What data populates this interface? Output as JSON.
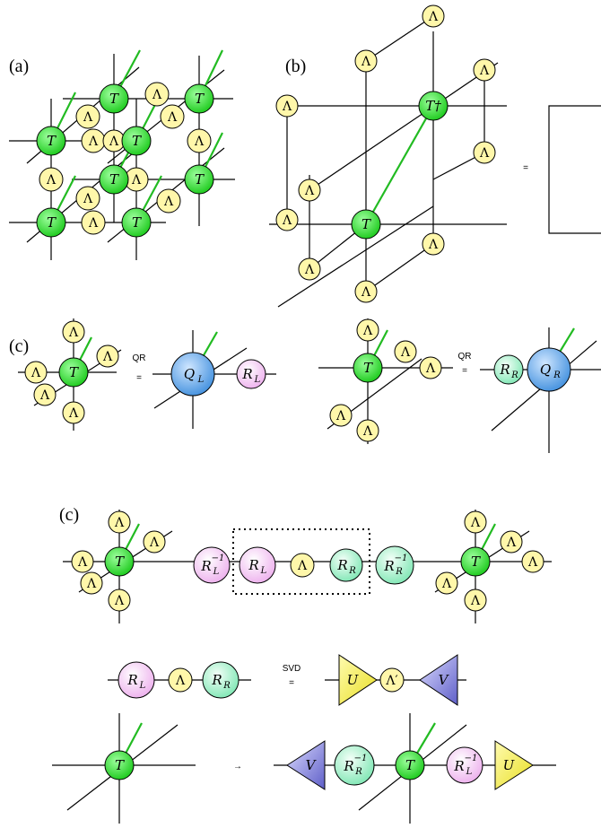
{
  "labels": {
    "a": "(a)",
    "b": "(b)",
    "c1": "(c)",
    "c2": "(c)"
  },
  "symbols": {
    "T": "T",
    "Tdag": "T†",
    "Lambda": "Λ",
    "LambdaPrime": "Λ′",
    "QL": "Q",
    "QL_sub": "L",
    "QR": "Q",
    "QR_sub": "R",
    "RL": "R",
    "RL_sub": "L",
    "RR": "R",
    "RR_sub": "R",
    "inv": "−1",
    "U": "U",
    "V": "V"
  },
  "operators": {
    "equals": "=",
    "arrow": "→",
    "qr": "QR",
    "svd": "SVD"
  },
  "colors": {
    "T": "#33dd33",
    "Lambda": "#fff7aa",
    "Q": "#5aa6ee",
    "RL": "#f6c8f6",
    "RR": "#a8f0cc",
    "U": "#f3ee44",
    "V": "#7a7ad8",
    "leg_green": "#22bb22"
  }
}
